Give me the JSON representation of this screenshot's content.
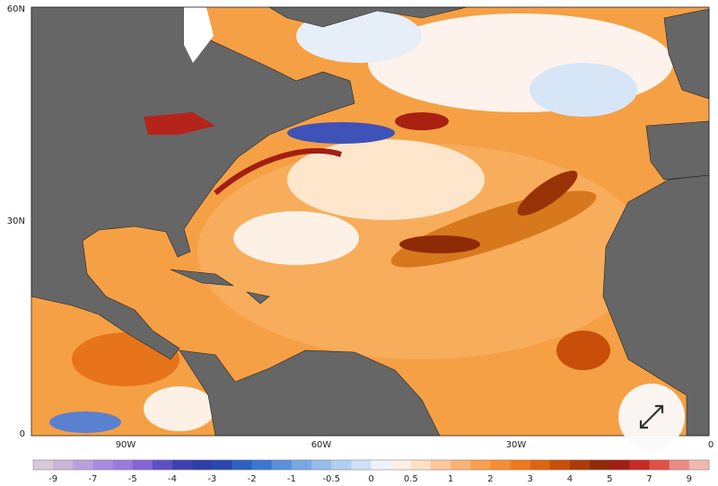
{
  "map": {
    "lat_labels": [
      "60N",
      "30N",
      "0"
    ],
    "lon_labels": [
      "90W",
      "60W",
      "30W",
      "0"
    ],
    "colorbar": {
      "labels": [
        "-9",
        "-7",
        "-5",
        "-4",
        "-3",
        "-2",
        "-1",
        "-0.5",
        "0",
        "0.5",
        "1",
        "2",
        "3",
        "4",
        "5",
        "7",
        "9"
      ],
      "colors": [
        "#d8c8d8",
        "#cbb5d6",
        "#b9a0dc",
        "#a98be0",
        "#9a7ae0",
        "#8266d8",
        "#5d4fc6",
        "#3f3fb0",
        "#2f3fa8",
        "#2847b0",
        "#2f5fc0",
        "#3a78d0",
        "#5a90dc",
        "#78a8e4",
        "#96bcea",
        "#b2cef0",
        "#cfe0f6",
        "#eef2fa",
        "#fdf0e4",
        "#fde0c4",
        "#fcc898",
        "#fbb474",
        "#f9a050",
        "#f58e32",
        "#ee7a1c",
        "#e06410",
        "#c84e0a",
        "#ad3a08",
        "#8e2a06",
        "#a21e14",
        "#c82a24",
        "#e25048",
        "#ec8a84",
        "#f2b8b0"
      ]
    }
  }
}
